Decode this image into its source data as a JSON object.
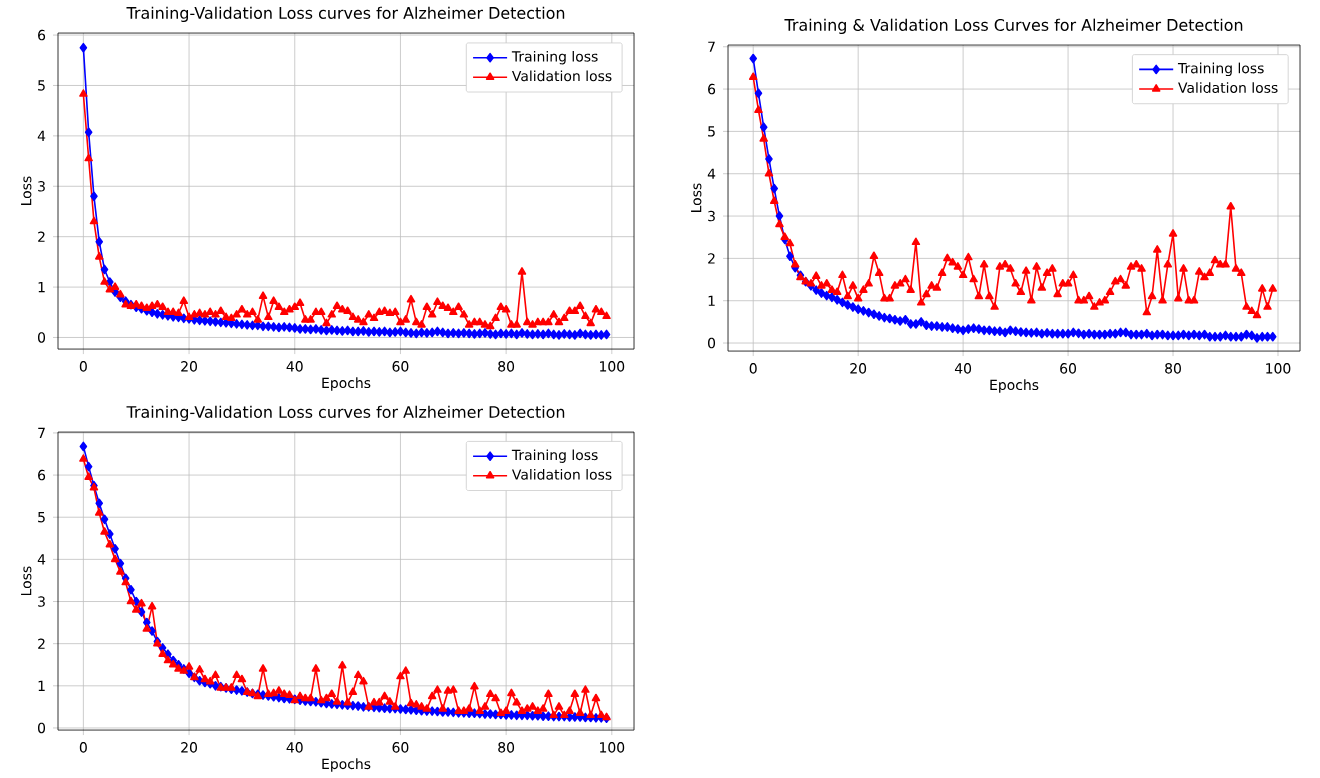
{
  "chart_data": [
    {
      "type": "line",
      "title": "Training-Validation Loss curves for Alzheimer Detection",
      "xlabel": "Epochs",
      "ylabel": "Loss",
      "xlim": [
        -4.8,
        104.2
      ],
      "ylim": [
        -0.23,
        6.04
      ],
      "xticks": [
        0,
        20,
        40,
        60,
        80,
        100
      ],
      "yticks": [
        0,
        1,
        2,
        3,
        4,
        5,
        6
      ],
      "grid": true,
      "legend": "top right",
      "series": [
        {
          "name": "Training loss",
          "color": "#0000ff",
          "marker": "diamond",
          "x": [
            0,
            1,
            2,
            3,
            4,
            5,
            6,
            7,
            8,
            9,
            10,
            11,
            12,
            13,
            14,
            15,
            16,
            17,
            18,
            19,
            20,
            21,
            22,
            23,
            24,
            25,
            26,
            27,
            28,
            29,
            30,
            31,
            32,
            33,
            34,
            35,
            36,
            37,
            38,
            39,
            40,
            41,
            42,
            43,
            44,
            45,
            46,
            47,
            48,
            49,
            50,
            51,
            52,
            53,
            54,
            55,
            56,
            57,
            58,
            59,
            60,
            61,
            62,
            63,
            64,
            65,
            66,
            67,
            68,
            69,
            70,
            71,
            72,
            73,
            74,
            75,
            76,
            77,
            78,
            79,
            80,
            81,
            82,
            83,
            84,
            85,
            86,
            87,
            88,
            89,
            90,
            91,
            92,
            93,
            94,
            95,
            96,
            97,
            98,
            99
          ],
          "values": [
            5.75,
            4.07,
            2.8,
            1.9,
            1.35,
            1.1,
            0.9,
            0.8,
            0.72,
            0.65,
            0.6,
            0.57,
            0.53,
            0.5,
            0.47,
            0.45,
            0.43,
            0.41,
            0.4,
            0.38,
            0.37,
            0.35,
            0.34,
            0.33,
            0.32,
            0.31,
            0.3,
            0.29,
            0.28,
            0.27,
            0.26,
            0.25,
            0.24,
            0.24,
            0.22,
            0.22,
            0.21,
            0.2,
            0.21,
            0.2,
            0.19,
            0.17,
            0.17,
            0.16,
            0.17,
            0.15,
            0.14,
            0.15,
            0.14,
            0.13,
            0.14,
            0.12,
            0.12,
            0.13,
            0.11,
            0.12,
            0.11,
            0.12,
            0.1,
            0.11,
            0.12,
            0.1,
            0.09,
            0.08,
            0.1,
            0.09,
            0.1,
            0.12,
            0.1,
            0.08,
            0.09,
            0.08,
            0.09,
            0.08,
            0.07,
            0.08,
            0.09,
            0.07,
            0.06,
            0.08,
            0.07,
            0.08,
            0.06,
            0.09,
            0.07,
            0.06,
            0.07,
            0.06,
            0.08,
            0.06,
            0.05,
            0.07,
            0.06,
            0.05,
            0.08,
            0.06,
            0.05,
            0.06,
            0.05,
            0.06
          ]
        },
        {
          "name": "Validation loss",
          "color": "#ff0000",
          "marker": "triangle",
          "x": [
            0,
            1,
            2,
            3,
            4,
            5,
            6,
            7,
            8,
            9,
            10,
            11,
            12,
            13,
            14,
            15,
            16,
            17,
            18,
            19,
            20,
            21,
            22,
            23,
            24,
            25,
            26,
            27,
            28,
            29,
            30,
            31,
            32,
            33,
            34,
            35,
            36,
            37,
            38,
            39,
            40,
            41,
            42,
            43,
            44,
            45,
            46,
            47,
            48,
            49,
            50,
            51,
            52,
            53,
            54,
            55,
            56,
            57,
            58,
            59,
            60,
            61,
            62,
            63,
            64,
            65,
            66,
            67,
            68,
            69,
            70,
            71,
            72,
            73,
            74,
            75,
            76,
            77,
            78,
            79,
            80,
            81,
            82,
            83,
            84,
            85,
            86,
            87,
            88,
            89,
            90,
            91,
            92,
            93,
            94,
            95,
            96,
            97,
            98,
            99
          ],
          "values": [
            4.83,
            3.55,
            2.3,
            1.6,
            1.1,
            0.95,
            1.0,
            0.85,
            0.65,
            0.62,
            0.65,
            0.62,
            0.58,
            0.62,
            0.65,
            0.6,
            0.5,
            0.5,
            0.48,
            0.72,
            0.4,
            0.45,
            0.48,
            0.45,
            0.5,
            0.45,
            0.52,
            0.4,
            0.38,
            0.45,
            0.55,
            0.45,
            0.5,
            0.35,
            0.82,
            0.4,
            0.72,
            0.6,
            0.5,
            0.55,
            0.6,
            0.68,
            0.35,
            0.35,
            0.5,
            0.5,
            0.28,
            0.45,
            0.62,
            0.55,
            0.52,
            0.4,
            0.35,
            0.3,
            0.45,
            0.38,
            0.5,
            0.52,
            0.48,
            0.5,
            0.3,
            0.35,
            0.75,
            0.3,
            0.25,
            0.6,
            0.45,
            0.7,
            0.62,
            0.58,
            0.5,
            0.6,
            0.45,
            0.25,
            0.3,
            0.3,
            0.25,
            0.22,
            0.38,
            0.6,
            0.55,
            0.25,
            0.25,
            1.3,
            0.3,
            0.25,
            0.3,
            0.3,
            0.3,
            0.45,
            0.3,
            0.38,
            0.52,
            0.52,
            0.62,
            0.42,
            0.28,
            0.55,
            0.5,
            0.42
          ]
        }
      ]
    },
    {
      "type": "line",
      "title": "Training & Validation Loss Curves for Alzheimer Detection",
      "xlabel": "Epochs",
      "ylabel": "Loss",
      "xlim": [
        -4.8,
        104.2
      ],
      "ylim": [
        -0.19,
        7.04
      ],
      "xticks": [
        0,
        20,
        40,
        60,
        80,
        100
      ],
      "yticks": [
        0,
        1,
        2,
        3,
        4,
        5,
        6,
        7
      ],
      "grid": true,
      "legend": "top right",
      "series": [
        {
          "name": "Training loss",
          "color": "#0000ff",
          "marker": "diamond",
          "x": [
            0,
            1,
            2,
            3,
            4,
            5,
            6,
            7,
            8,
            9,
            10,
            11,
            12,
            13,
            14,
            15,
            16,
            17,
            18,
            19,
            20,
            21,
            22,
            23,
            24,
            25,
            26,
            27,
            28,
            29,
            30,
            31,
            32,
            33,
            34,
            35,
            36,
            37,
            38,
            39,
            40,
            41,
            42,
            43,
            44,
            45,
            46,
            47,
            48,
            49,
            50,
            51,
            52,
            53,
            54,
            55,
            56,
            57,
            58,
            59,
            60,
            61,
            62,
            63,
            64,
            65,
            66,
            67,
            68,
            69,
            70,
            71,
            72,
            73,
            74,
            75,
            76,
            77,
            78,
            79,
            80,
            81,
            82,
            83,
            84,
            85,
            86,
            87,
            88,
            89,
            90,
            91,
            92,
            93,
            94,
            95,
            96,
            97,
            98,
            99
          ],
          "values": [
            6.72,
            5.9,
            5.1,
            4.35,
            3.65,
            3.0,
            2.45,
            2.05,
            1.78,
            1.6,
            1.45,
            1.35,
            1.25,
            1.18,
            1.12,
            1.08,
            1.02,
            0.96,
            0.9,
            0.85,
            0.8,
            0.76,
            0.72,
            0.68,
            0.64,
            0.6,
            0.58,
            0.55,
            0.52,
            0.55,
            0.45,
            0.45,
            0.5,
            0.42,
            0.4,
            0.4,
            0.38,
            0.38,
            0.35,
            0.33,
            0.3,
            0.33,
            0.35,
            0.33,
            0.3,
            0.3,
            0.28,
            0.28,
            0.25,
            0.3,
            0.28,
            0.26,
            0.25,
            0.24,
            0.25,
            0.22,
            0.24,
            0.22,
            0.22,
            0.22,
            0.22,
            0.25,
            0.23,
            0.2,
            0.22,
            0.2,
            0.2,
            0.2,
            0.22,
            0.22,
            0.25,
            0.25,
            0.2,
            0.2,
            0.2,
            0.22,
            0.18,
            0.2,
            0.2,
            0.18,
            0.18,
            0.18,
            0.2,
            0.18,
            0.2,
            0.18,
            0.2,
            0.15,
            0.15,
            0.15,
            0.18,
            0.15,
            0.15,
            0.15,
            0.2,
            0.18,
            0.12,
            0.15,
            0.15,
            0.15
          ]
        },
        {
          "name": "Validation loss",
          "color": "#ff0000",
          "marker": "triangle",
          "x": [
            0,
            1,
            2,
            3,
            4,
            5,
            6,
            7,
            8,
            9,
            10,
            11,
            12,
            13,
            14,
            15,
            16,
            17,
            18,
            19,
            20,
            21,
            22,
            23,
            24,
            25,
            26,
            27,
            28,
            29,
            30,
            31,
            32,
            33,
            34,
            35,
            36,
            37,
            38,
            39,
            40,
            41,
            42,
            43,
            44,
            45,
            46,
            47,
            48,
            49,
            50,
            51,
            52,
            53,
            54,
            55,
            56,
            57,
            58,
            59,
            60,
            61,
            62,
            63,
            64,
            65,
            66,
            67,
            68,
            69,
            70,
            71,
            72,
            73,
            74,
            75,
            76,
            77,
            78,
            79,
            80,
            81,
            82,
            83,
            84,
            85,
            86,
            87,
            88,
            89,
            90,
            91,
            92,
            93,
            94,
            95,
            96,
            97,
            98,
            99
          ],
          "values": [
            6.28,
            5.5,
            4.82,
            4.0,
            3.35,
            2.8,
            2.5,
            2.35,
            1.85,
            1.55,
            1.45,
            1.4,
            1.58,
            1.35,
            1.4,
            1.25,
            1.2,
            1.6,
            1.1,
            1.35,
            1.05,
            1.25,
            1.4,
            2.05,
            1.65,
            1.05,
            1.05,
            1.35,
            1.4,
            1.5,
            1.25,
            2.38,
            0.95,
            1.15,
            1.35,
            1.3,
            1.65,
            2.0,
            1.9,
            1.8,
            1.6,
            2.02,
            1.5,
            1.1,
            1.85,
            1.1,
            0.85,
            1.8,
            1.85,
            1.75,
            1.4,
            1.2,
            1.7,
            1.0,
            1.8,
            1.3,
            1.65,
            1.75,
            1.15,
            1.4,
            1.4,
            1.6,
            1.0,
            1.0,
            1.1,
            0.85,
            0.95,
            1.0,
            1.2,
            1.45,
            1.5,
            1.35,
            1.8,
            1.85,
            1.75,
            0.72,
            1.1,
            2.2,
            1.0,
            1.85,
            2.58,
            1.05,
            1.75,
            1.0,
            1.0,
            1.68,
            1.55,
            1.65,
            1.95,
            1.85,
            1.85,
            3.22,
            1.75,
            1.65,
            0.85,
            0.75,
            0.65,
            1.28,
            0.85,
            1.28
          ]
        }
      ]
    },
    {
      "type": "line",
      "title": "Training-Validation Loss curves for Alzheimer Detection",
      "xlabel": "Epochs",
      "ylabel": "Loss",
      "xlim": [
        -4.8,
        104.2
      ],
      "ylim": [
        -0.05,
        7.02
      ],
      "xticks": [
        0,
        20,
        40,
        60,
        80,
        100
      ],
      "yticks": [
        0,
        1,
        2,
        3,
        4,
        5,
        6,
        7
      ],
      "grid": true,
      "legend": "top right",
      "series": [
        {
          "name": "Training loss",
          "color": "#0000ff",
          "marker": "diamond",
          "x": [
            0,
            1,
            2,
            3,
            4,
            5,
            6,
            7,
            8,
            9,
            10,
            11,
            12,
            13,
            14,
            15,
            16,
            17,
            18,
            19,
            20,
            21,
            22,
            23,
            24,
            25,
            26,
            27,
            28,
            29,
            30,
            31,
            32,
            33,
            34,
            35,
            36,
            37,
            38,
            39,
            40,
            41,
            42,
            43,
            44,
            45,
            46,
            47,
            48,
            49,
            50,
            51,
            52,
            53,
            54,
            55,
            56,
            57,
            58,
            59,
            60,
            61,
            62,
            63,
            64,
            65,
            66,
            67,
            68,
            69,
            70,
            71,
            72,
            73,
            74,
            75,
            76,
            77,
            78,
            79,
            80,
            81,
            82,
            83,
            84,
            85,
            86,
            87,
            88,
            89,
            90,
            91,
            92,
            93,
            94,
            95,
            96,
            97,
            98,
            99
          ],
          "values": [
            6.68,
            6.2,
            5.75,
            5.33,
            4.95,
            4.6,
            4.25,
            3.9,
            3.55,
            3.28,
            3.0,
            2.75,
            2.5,
            2.3,
            2.05,
            1.9,
            1.75,
            1.6,
            1.5,
            1.4,
            1.3,
            1.2,
            1.12,
            1.08,
            1.05,
            1.0,
            0.98,
            0.95,
            0.92,
            0.9,
            0.88,
            0.85,
            0.82,
            0.8,
            0.78,
            0.76,
            0.74,
            0.72,
            0.7,
            0.69,
            0.68,
            0.66,
            0.64,
            0.63,
            0.62,
            0.6,
            0.58,
            0.57,
            0.56,
            0.55,
            0.54,
            0.53,
            0.52,
            0.5,
            0.5,
            0.49,
            0.48,
            0.47,
            0.46,
            0.46,
            0.45,
            0.44,
            0.43,
            0.42,
            0.41,
            0.4,
            0.4,
            0.39,
            0.38,
            0.38,
            0.37,
            0.36,
            0.36,
            0.35,
            0.35,
            0.34,
            0.33,
            0.33,
            0.32,
            0.32,
            0.31,
            0.31,
            0.3,
            0.3,
            0.3,
            0.29,
            0.29,
            0.28,
            0.28,
            0.27,
            0.27,
            0.27,
            0.26,
            0.26,
            0.26,
            0.25,
            0.25,
            0.24,
            0.24,
            0.23
          ]
        },
        {
          "name": "Validation loss",
          "color": "#ff0000",
          "marker": "triangle",
          "x": [
            0,
            1,
            2,
            3,
            4,
            5,
            6,
            7,
            8,
            9,
            10,
            11,
            12,
            13,
            14,
            15,
            16,
            17,
            18,
            19,
            20,
            21,
            22,
            23,
            24,
            25,
            26,
            27,
            28,
            29,
            30,
            31,
            32,
            33,
            34,
            35,
            36,
            37,
            38,
            39,
            40,
            41,
            42,
            43,
            44,
            45,
            46,
            47,
            48,
            49,
            50,
            51,
            52,
            53,
            54,
            55,
            56,
            57,
            58,
            59,
            60,
            61,
            62,
            63,
            64,
            65,
            66,
            67,
            68,
            69,
            70,
            71,
            72,
            73,
            74,
            75,
            76,
            77,
            78,
            79,
            80,
            81,
            82,
            83,
            84,
            85,
            86,
            87,
            88,
            89,
            90,
            91,
            92,
            93,
            94,
            95,
            96,
            97,
            98,
            99
          ],
          "values": [
            6.38,
            5.95,
            5.7,
            5.1,
            4.65,
            4.35,
            4.0,
            3.7,
            3.45,
            3.0,
            2.8,
            2.95,
            2.35,
            2.88,
            2.0,
            1.75,
            1.6,
            1.5,
            1.4,
            1.35,
            1.45,
            1.2,
            1.38,
            1.15,
            1.1,
            1.25,
            0.95,
            0.95,
            0.95,
            1.25,
            1.15,
            0.85,
            0.82,
            0.75,
            1.4,
            0.8,
            0.82,
            0.88,
            0.8,
            0.78,
            0.65,
            0.75,
            0.7,
            0.7,
            1.4,
            0.65,
            0.7,
            0.8,
            0.62,
            1.48,
            0.6,
            0.85,
            1.25,
            1.1,
            0.5,
            0.6,
            0.6,
            0.75,
            0.62,
            0.5,
            1.22,
            1.35,
            0.58,
            0.55,
            0.5,
            0.45,
            0.75,
            0.9,
            0.45,
            0.88,
            0.9,
            0.4,
            0.4,
            0.45,
            0.98,
            0.4,
            0.5,
            0.8,
            0.7,
            0.35,
            0.4,
            0.82,
            0.6,
            0.4,
            0.45,
            0.5,
            0.4,
            0.45,
            0.8,
            0.3,
            0.5,
            0.3,
            0.4,
            0.8,
            0.35,
            0.9,
            0.3,
            0.7,
            0.3,
            0.25
          ]
        }
      ]
    }
  ]
}
